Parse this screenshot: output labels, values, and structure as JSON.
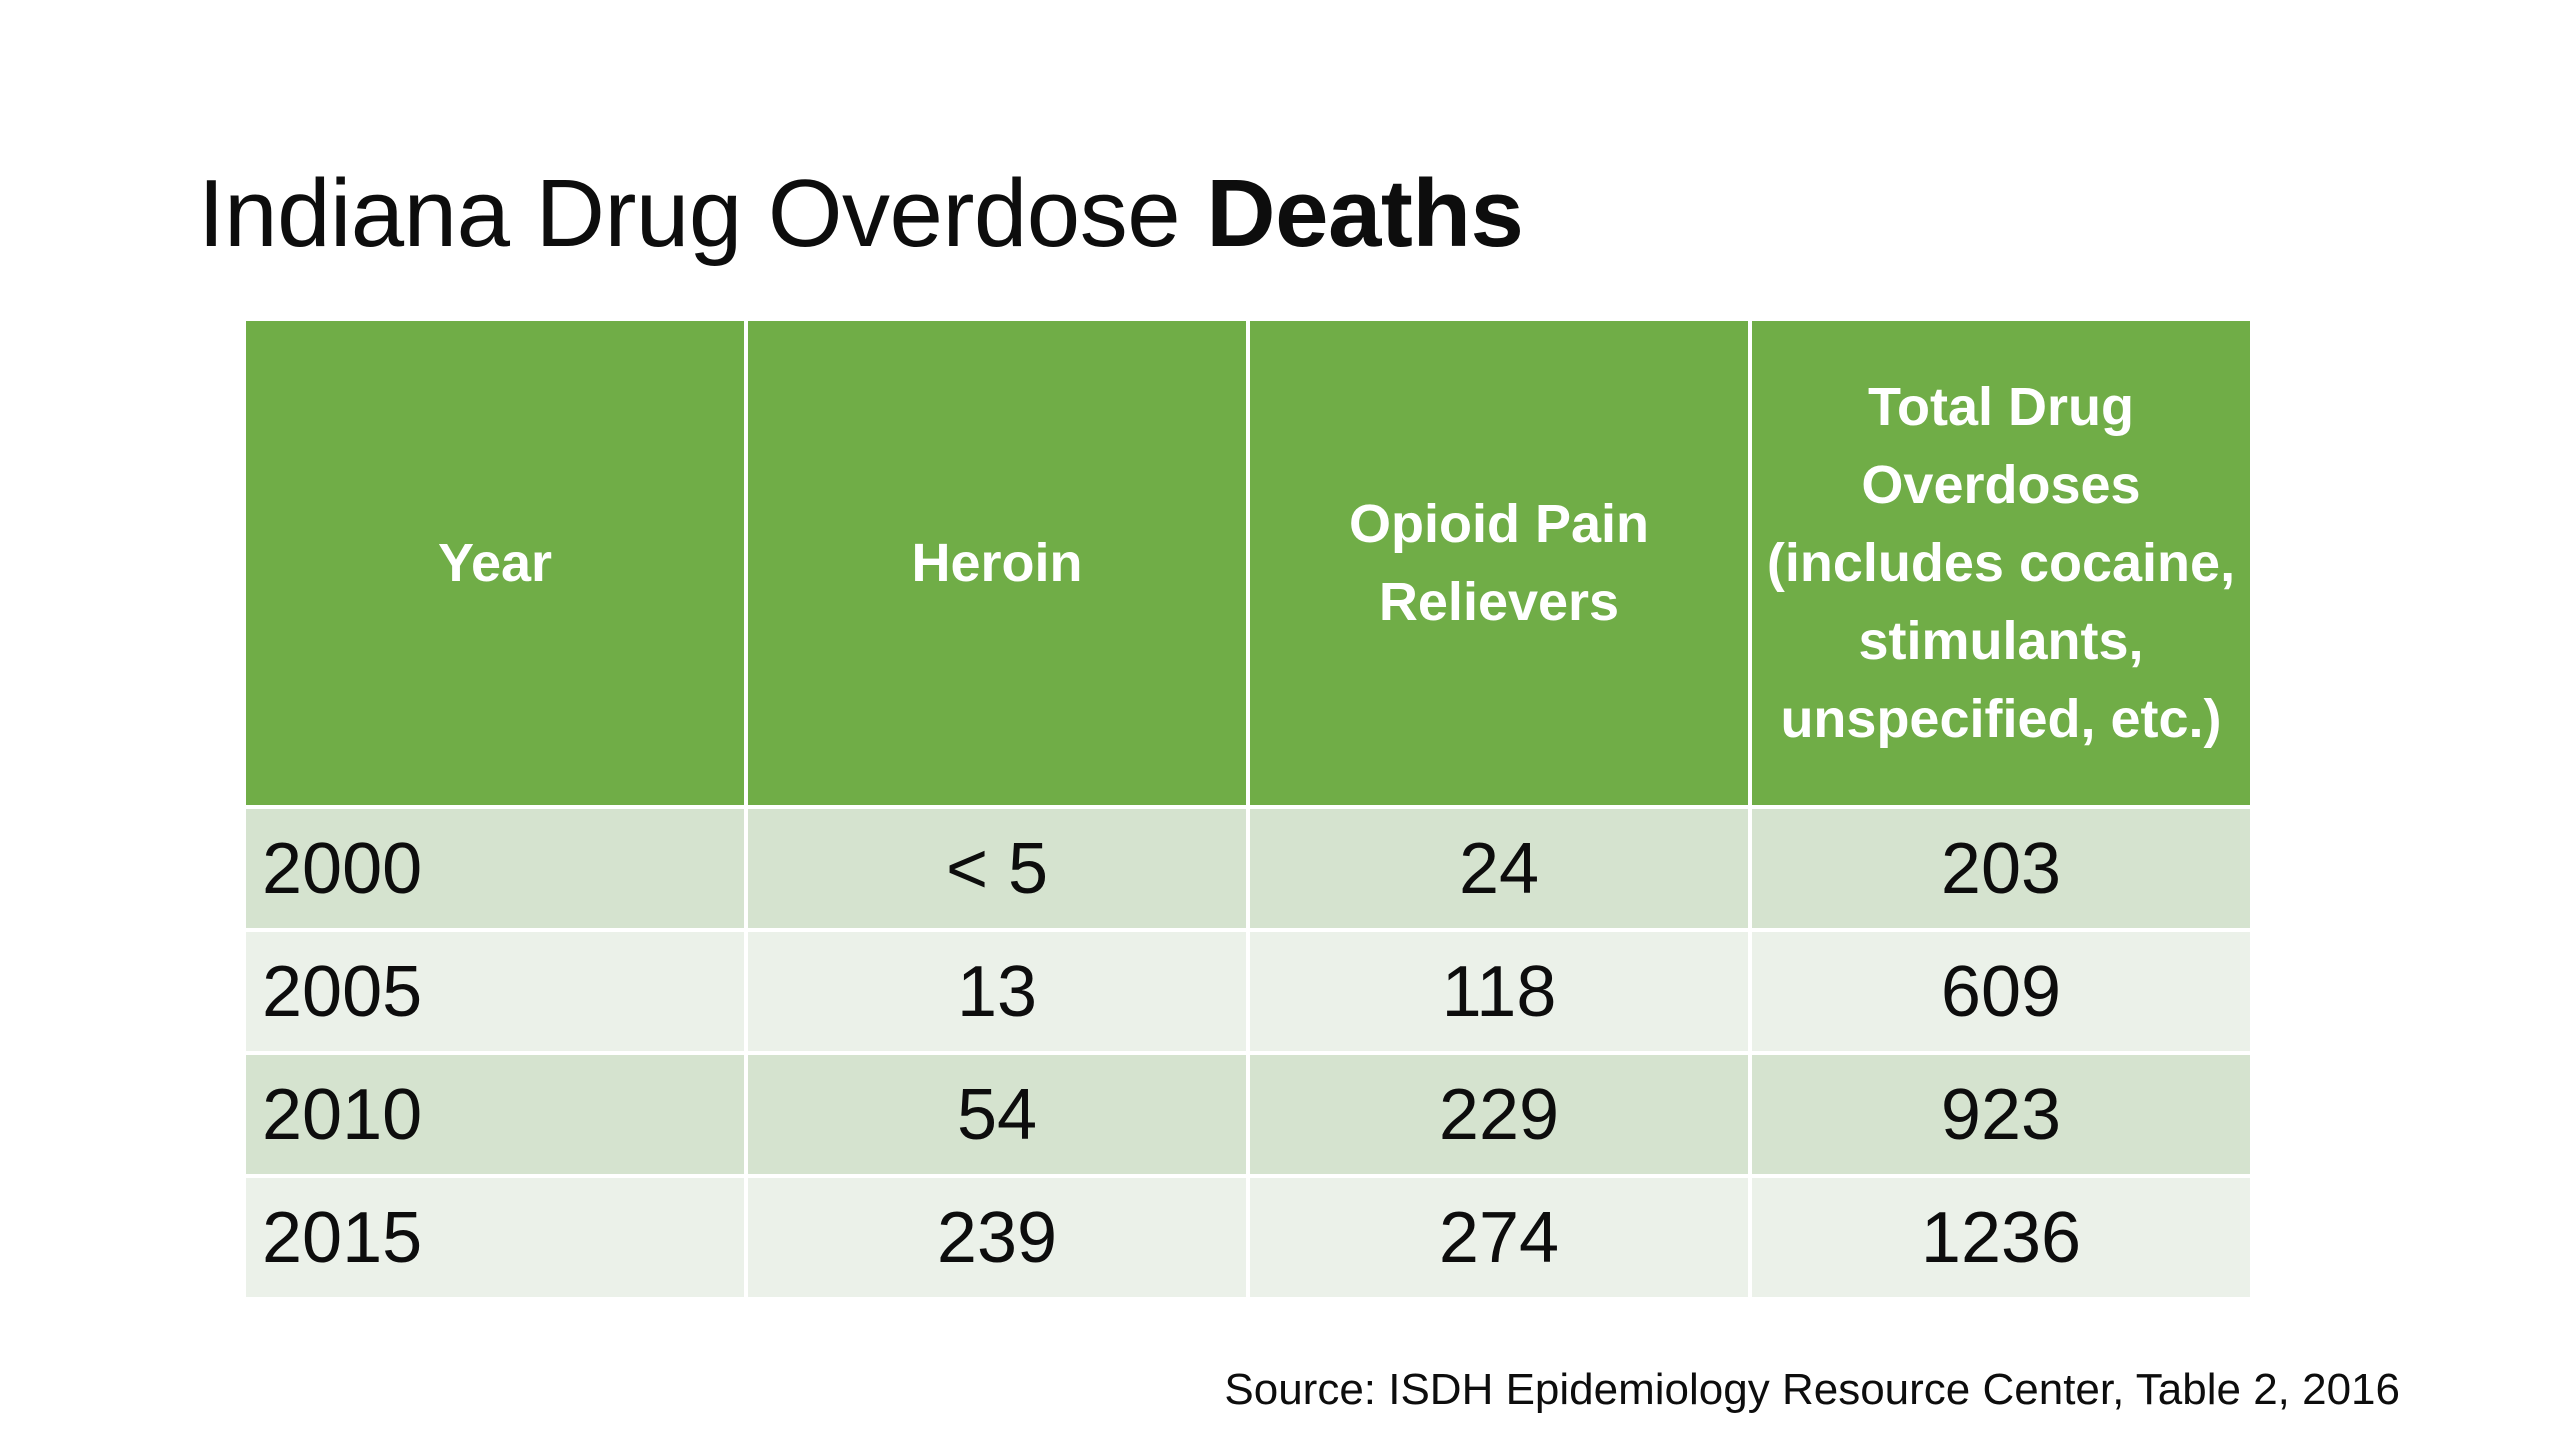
{
  "title": {
    "regular": "Indiana Drug Overdose ",
    "bold": "Deaths"
  },
  "table": {
    "headers": [
      "Year",
      "Heroin",
      "Opioid Pain Relievers",
      "Total Drug Overdoses (includes cocaine, stimulants, unspecified, etc.)"
    ],
    "rows": [
      [
        "2000",
        "< 5",
        "24",
        "203"
      ],
      [
        "2005",
        "13",
        "118",
        "609"
      ],
      [
        "2010",
        "54",
        "229",
        "923"
      ],
      [
        "2015",
        "239",
        "274",
        "1236"
      ]
    ]
  },
  "source": "Source: ISDH Epidemiology Resource Center, Table 2, 2016",
  "colors": {
    "header_bg": "#70ad47",
    "row_odd_bg": "#d5e3cf",
    "row_even_bg": "#ebf1e9"
  }
}
